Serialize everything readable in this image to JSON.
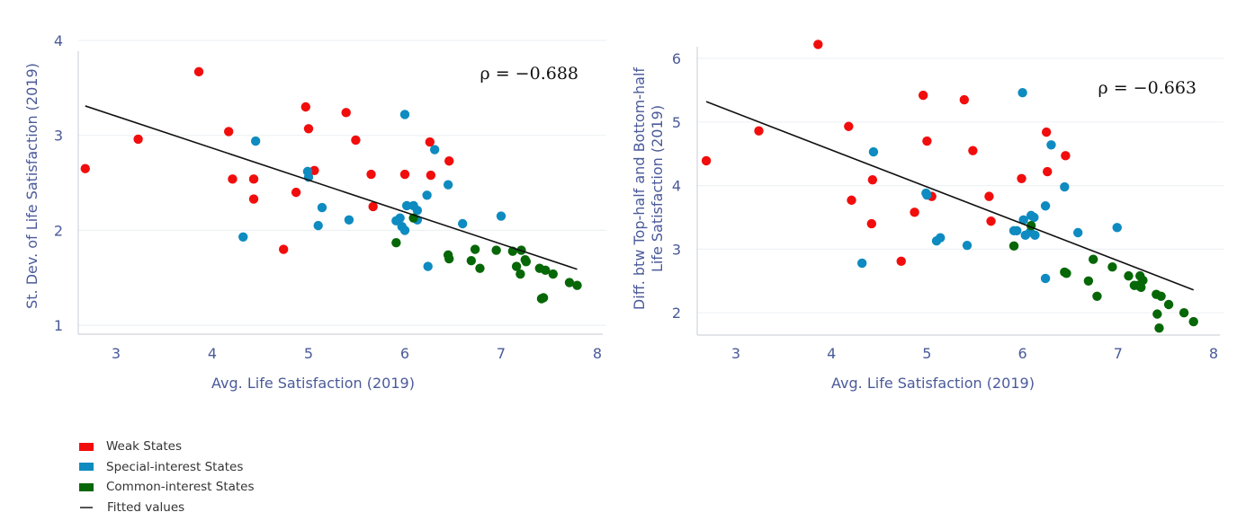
{
  "legend": {
    "items": [
      {
        "label": "Weak States",
        "color": "#f20d0d"
      },
      {
        "label": "Special-interest States",
        "color": "#0e8bc0"
      },
      {
        "label": "Common-interest States",
        "color": "#066706"
      },
      {
        "label": "Fitted values",
        "color": "#111111"
      }
    ]
  },
  "chart_data": [
    {
      "type": "scatter",
      "title": "",
      "annotation": "ρ = −0.688",
      "xlabel": "Avg. Life Satisfaction (2019)",
      "ylabel": "St. Dev. of Life Satisfaction (2019)",
      "xlim": [
        2.65,
        8.0
      ],
      "ylim": [
        0.95,
        4.0
      ],
      "xticks": [
        3,
        4,
        5,
        6,
        7,
        8
      ],
      "yticks": [
        1,
        2,
        3,
        4
      ],
      "grid": true,
      "legend_position": "bottom-left",
      "series": [
        {
          "name": "Weak States",
          "points": [
            [
              2.68,
              2.65
            ],
            [
              3.23,
              2.96
            ],
            [
              3.86,
              3.67
            ],
            [
              4.17,
              3.04
            ],
            [
              4.21,
              2.54
            ],
            [
              4.43,
              2.54
            ],
            [
              4.43,
              2.33
            ],
            [
              4.87,
              2.4
            ],
            [
              4.74,
              1.8
            ],
            [
              4.97,
              3.3
            ],
            [
              5.0,
              3.07
            ],
            [
              5.06,
              2.63
            ],
            [
              5.39,
              3.24
            ],
            [
              5.49,
              2.95
            ],
            [
              5.65,
              2.59
            ],
            [
              5.67,
              2.25
            ],
            [
              6.0,
              2.59
            ],
            [
              6.26,
              2.93
            ],
            [
              6.27,
              2.58
            ],
            [
              6.46,
              2.73
            ]
          ]
        },
        {
          "name": "Special-interest States",
          "points": [
            [
              4.32,
              1.93
            ],
            [
              4.45,
              2.94
            ],
            [
              4.99,
              2.62
            ],
            [
              5.0,
              2.56
            ],
            [
              5.14,
              2.24
            ],
            [
              5.1,
              2.05
            ],
            [
              5.42,
              2.11
            ],
            [
              6.0,
              3.22
            ],
            [
              6.31,
              2.85
            ],
            [
              6.45,
              2.48
            ],
            [
              6.23,
              2.37
            ],
            [
              6.02,
              2.26
            ],
            [
              6.09,
              2.26
            ],
            [
              6.13,
              2.21
            ],
            [
              5.91,
              2.1
            ],
            [
              5.95,
              2.13
            ],
            [
              5.97,
              2.04
            ],
            [
              6.0,
              2.0
            ],
            [
              6.13,
              2.11
            ],
            [
              6.6,
              2.07
            ],
            [
              7.0,
              2.15
            ],
            [
              6.24,
              1.62
            ]
          ]
        },
        {
          "name": "Common-interest States",
          "points": [
            [
              5.91,
              1.87
            ],
            [
              6.09,
              2.13
            ],
            [
              6.45,
              1.74
            ],
            [
              6.46,
              1.7
            ],
            [
              6.73,
              1.8
            ],
            [
              6.69,
              1.68
            ],
            [
              6.78,
              1.6
            ],
            [
              6.95,
              1.79
            ],
            [
              7.12,
              1.78
            ],
            [
              7.21,
              1.79
            ],
            [
              7.25,
              1.69
            ],
            [
              7.26,
              1.67
            ],
            [
              7.16,
              1.62
            ],
            [
              7.2,
              1.54
            ],
            [
              7.4,
              1.6
            ],
            [
              7.46,
              1.58
            ],
            [
              7.54,
              1.54
            ],
            [
              7.42,
              1.28
            ],
            [
              7.44,
              1.29
            ],
            [
              7.71,
              1.45
            ],
            [
              7.79,
              1.42
            ]
          ]
        }
      ],
      "fit": {
        "name": "Fitted values",
        "x": [
          2.68,
          7.79
        ],
        "y": [
          3.31,
          1.59
        ]
      }
    },
    {
      "type": "scatter",
      "title": "",
      "annotation": "ρ = −0.663",
      "xlabel": "Avg. Life Satisfaction (2019)",
      "ylabel": "Diff. btw Top-half and Bottom-half Life Satisfaction (2019)",
      "ylabel_lines": [
        "Diff. btw Top-half and Bottom-half",
        "Life Satisfaction (2019)"
      ],
      "xlim": [
        2.55,
        8.0
      ],
      "ylim": [
        1.6,
        6.2
      ],
      "xticks": [
        3,
        4,
        5,
        6,
        7,
        8
      ],
      "yticks": [
        2,
        3,
        4,
        5,
        6
      ],
      "grid": true,
      "legend_position": "bottom-left",
      "series": [
        {
          "name": "Weak States",
          "points": [
            [
              2.69,
              4.39
            ],
            [
              3.24,
              4.86
            ],
            [
              3.86,
              6.22
            ],
            [
              4.18,
              4.93
            ],
            [
              4.21,
              3.77
            ],
            [
              4.43,
              4.09
            ],
            [
              4.42,
              3.4
            ],
            [
              4.73,
              2.81
            ],
            [
              4.87,
              3.58
            ],
            [
              4.96,
              5.42
            ],
            [
              5.0,
              4.7
            ],
            [
              5.05,
              3.83
            ],
            [
              5.39,
              5.35
            ],
            [
              5.48,
              4.55
            ],
            [
              5.65,
              3.83
            ],
            [
              5.67,
              3.44
            ],
            [
              5.99,
              4.11
            ],
            [
              6.25,
              4.84
            ],
            [
              6.26,
              4.22
            ],
            [
              6.45,
              4.47
            ]
          ]
        },
        {
          "name": "Special-interest States",
          "points": [
            [
              4.32,
              2.78
            ],
            [
              4.44,
              4.53
            ],
            [
              4.99,
              3.88
            ],
            [
              5.0,
              3.85
            ],
            [
              5.1,
              3.13
            ],
            [
              5.14,
              3.18
            ],
            [
              5.42,
              3.06
            ],
            [
              6.0,
              5.46
            ],
            [
              6.3,
              4.64
            ],
            [
              6.44,
              3.98
            ],
            [
              6.24,
              3.68
            ],
            [
              6.08,
              3.27
            ],
            [
              5.94,
              3.29
            ],
            [
              6.03,
              3.22
            ],
            [
              6.01,
              3.46
            ],
            [
              6.09,
              3.53
            ],
            [
              6.12,
              3.5
            ],
            [
              6.13,
              3.22
            ],
            [
              5.91,
              3.29
            ],
            [
              6.58,
              3.26
            ],
            [
              6.99,
              3.34
            ],
            [
              6.24,
              2.54
            ]
          ]
        },
        {
          "name": "Common-interest States",
          "points": [
            [
              5.91,
              3.05
            ],
            [
              6.09,
              3.37
            ],
            [
              6.44,
              2.64
            ],
            [
              6.46,
              2.62
            ],
            [
              6.74,
              2.84
            ],
            [
              6.69,
              2.5
            ],
            [
              6.78,
              2.26
            ],
            [
              6.94,
              2.72
            ],
            [
              7.11,
              2.58
            ],
            [
              7.17,
              2.43
            ],
            [
              7.21,
              2.43
            ],
            [
              7.23,
              2.58
            ],
            [
              7.26,
              2.51
            ],
            [
              7.24,
              2.4
            ],
            [
              7.4,
              2.29
            ],
            [
              7.45,
              2.26
            ],
            [
              7.53,
              2.13
            ],
            [
              7.41,
              1.98
            ],
            [
              7.43,
              1.76
            ],
            [
              7.69,
              2.0
            ],
            [
              7.79,
              1.86
            ]
          ]
        }
      ],
      "fit": {
        "name": "Fitted values",
        "x": [
          2.69,
          7.79
        ],
        "y": [
          5.32,
          2.36
        ]
      }
    }
  ]
}
